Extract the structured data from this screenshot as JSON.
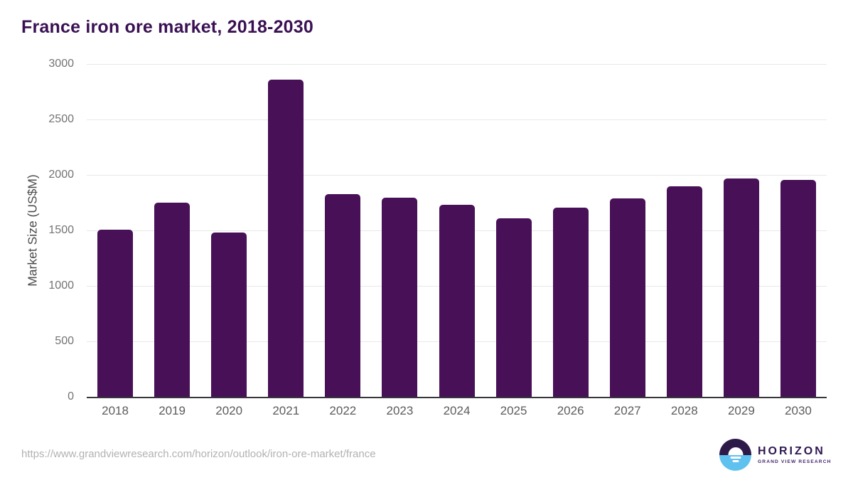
{
  "header": {
    "title": "France iron ore market, 2018-2030"
  },
  "chart_data": {
    "type": "bar",
    "title": "France iron ore market, 2018-2030",
    "xlabel": "",
    "ylabel": "Market Size (US$M)",
    "categories": [
      "2018",
      "2019",
      "2020",
      "2021",
      "2022",
      "2023",
      "2024",
      "2025",
      "2026",
      "2027",
      "2028",
      "2029",
      "2030"
    ],
    "values": [
      1505,
      1750,
      1480,
      2860,
      1825,
      1795,
      1730,
      1610,
      1705,
      1790,
      1895,
      1965,
      1955
    ],
    "ylim": [
      0,
      3000
    ],
    "yticks": [
      0,
      500,
      1000,
      1500,
      2000,
      2500,
      3000
    ],
    "grid": true,
    "legend_position": "none",
    "bar_color": "#471057"
  },
  "colors": {
    "title": "#3a1053",
    "bar": "#471057",
    "gridline": "#e8e8e8",
    "axis_line": "#37363c",
    "y_tick_label": "#737373",
    "x_tick_label": "#5c5c5c",
    "source_url": "#b2b2b2",
    "logo_circle_top": "#2d1a49",
    "logo_circle_bottom": "#5ec1ef",
    "logo_text": "#2f1650"
  },
  "footer": {
    "source_url": "https://www.grandviewresearch.com/horizon/outlook/iron-ore-market/france",
    "logo": {
      "title": "HORIZON",
      "subtitle": "GRAND VIEW RESEARCH"
    }
  }
}
